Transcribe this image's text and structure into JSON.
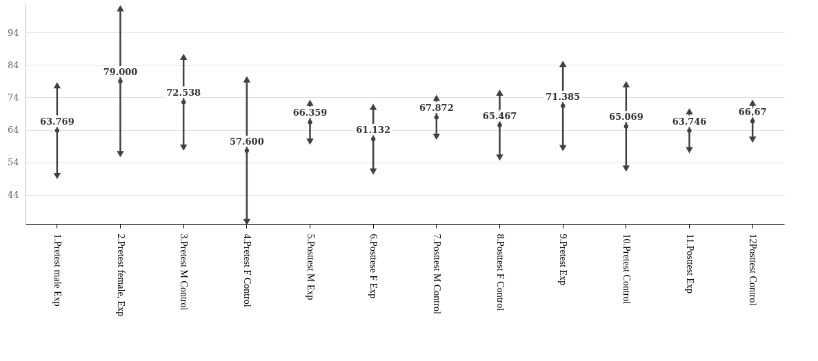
{
  "chart_data": {
    "type": "scatter",
    "marker": "circle",
    "grid": "y",
    "value_labels": [
      "63.769",
      "79.000",
      "72.538",
      "57.600",
      "66.359",
      "61.132",
      "67.872",
      "65.467",
      "71.385",
      "65.069",
      "63.746",
      "66.67"
    ],
    "categories": [
      "1.Pretest male Exp",
      "2.Pretest female, Exp",
      "3.Pretest M Control",
      "4.Pretest F Control",
      "5.Posttest M Exp",
      "6.Posttese F Exp",
      "7.Posttest M Control",
      "8.Posttest F Control",
      "9.Pretest Exp",
      "10.Pretest Control",
      "11.Posttest Exp",
      "12Posttest Control"
    ],
    "values": [
      63.769,
      79.0,
      72.538,
      57.6,
      66.359,
      61.132,
      67.872,
      65.467,
      71.385,
      65.069,
      63.746,
      66.67
    ],
    "errors": [
      14,
      22.5,
      14,
      22,
      6,
      10,
      6,
      10,
      13,
      13,
      6,
      5.7
    ],
    "color": "#404040",
    "ylim": [
      35,
      103
    ],
    "yticks": [
      44,
      54,
      64,
      74,
      84,
      94
    ]
  }
}
